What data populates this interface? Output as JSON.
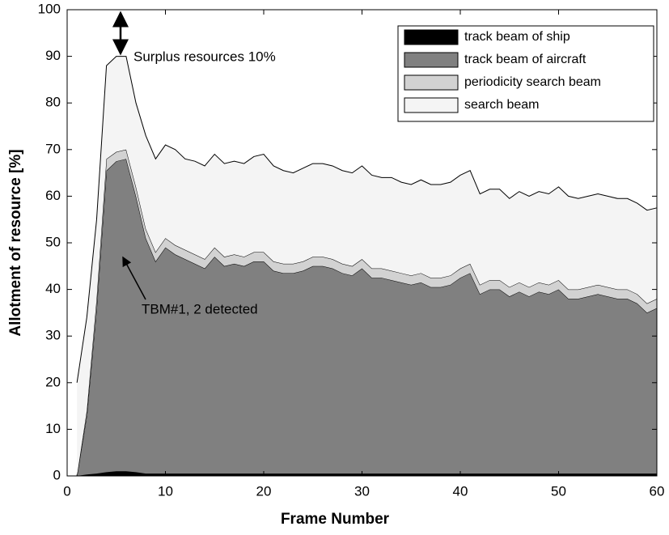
{
  "chart_data": {
    "type": "stacked_area",
    "xlabel": "Frame Number",
    "ylabel": "Allotment of resource [%]",
    "x": [
      1,
      2,
      3,
      4,
      5,
      6,
      7,
      8,
      9,
      10,
      11,
      12,
      13,
      14,
      15,
      16,
      17,
      18,
      19,
      20,
      21,
      22,
      23,
      24,
      25,
      26,
      27,
      28,
      29,
      30,
      31,
      32,
      33,
      34,
      35,
      36,
      37,
      38,
      39,
      40,
      41,
      42,
      43,
      44,
      45,
      46,
      47,
      48,
      49,
      50,
      51,
      52,
      53,
      54,
      55,
      56,
      57,
      58,
      59,
      60
    ],
    "series": [
      {
        "name": "track beam of ship",
        "color": "#000000",
        "values": [
          0,
          0.3,
          0.5,
          0.8,
          1,
          1,
          0.8,
          0.5,
          0.5,
          0.5,
          0.5,
          0.5,
          0.5,
          0.5,
          0.5,
          0.5,
          0.5,
          0.5,
          0.5,
          0.5,
          0.5,
          0.5,
          0.5,
          0.5,
          0.5,
          0.5,
          0.5,
          0.5,
          0.5,
          0.5,
          0.5,
          0.5,
          0.5,
          0.5,
          0.5,
          0.5,
          0.5,
          0.5,
          0.5,
          0.5,
          0.5,
          0.5,
          0.5,
          0.5,
          0.5,
          0.5,
          0.5,
          0.5,
          0.5,
          0.5,
          0.5,
          0.5,
          0.5,
          0.5,
          0.5,
          0.5,
          0.5,
          0.5,
          0.5,
          0.5
        ]
      },
      {
        "name": "track beam of aircraft",
        "color": "#808080",
        "values": [
          0,
          12.7,
          35.5,
          64.7,
          66.5,
          67,
          59.2,
          50.5,
          45.5,
          48.5,
          47,
          46,
          45,
          44,
          46.5,
          44.5,
          45,
          44.5,
          45.5,
          45.5,
          43.5,
          43,
          43,
          43.5,
          44.5,
          44.5,
          44,
          43,
          42.5,
          44,
          42,
          42,
          41.5,
          41,
          40.5,
          41,
          40,
          40,
          40.5,
          42,
          43,
          38.5,
          39.5,
          39.5,
          38,
          39,
          38,
          39,
          38.5,
          39.5,
          37.5,
          37.5,
          38,
          38.5,
          38,
          37.5,
          37.5,
          36.5,
          34.5,
          35.5
        ]
      },
      {
        "name": "periodicity search beam",
        "color": "#d2d2d2",
        "values": [
          0,
          1,
          2,
          2.5,
          2,
          2,
          2,
          2,
          2,
          2,
          2,
          2,
          2,
          2,
          2,
          2,
          2,
          2,
          2,
          2,
          2,
          2,
          2,
          2,
          2,
          2,
          2,
          2,
          2,
          2,
          2,
          2,
          2,
          2,
          2,
          2,
          2,
          2,
          2,
          2,
          2,
          2,
          2,
          2,
          2,
          2,
          2,
          2,
          2,
          2,
          2,
          2,
          2,
          2,
          2,
          2,
          2,
          2,
          2,
          2
        ]
      },
      {
        "name": "search beam",
        "color": "#f4f4f4",
        "values": [
          20,
          20,
          17,
          20,
          20.5,
          20,
          18,
          20,
          20,
          20,
          20.5,
          19.5,
          20,
          20,
          20,
          20,
          20,
          20,
          20.5,
          21,
          20.5,
          20,
          19.5,
          20,
          20,
          20,
          20,
          20,
          20,
          20,
          20,
          19.5,
          20,
          19.5,
          19.5,
          20,
          20,
          20,
          20,
          20,
          20,
          19.5,
          19.5,
          19.5,
          19,
          19.5,
          19.5,
          19.5,
          19.5,
          20,
          20,
          19.5,
          19.5,
          19.5,
          19.5,
          19.5,
          19.5,
          19.5,
          20,
          19.5
        ]
      }
    ],
    "annotations": [
      "Surplus resources 10%",
      "TBM#1, 2 detected"
    ],
    "xlim": [
      0,
      60
    ],
    "xticks": [
      0,
      10,
      20,
      30,
      40,
      50,
      60
    ],
    "ylim": [
      0,
      100
    ],
    "yticks": [
      0,
      10,
      20,
      30,
      40,
      50,
      60,
      70,
      80,
      90,
      100
    ],
    "legend": "upper right"
  }
}
